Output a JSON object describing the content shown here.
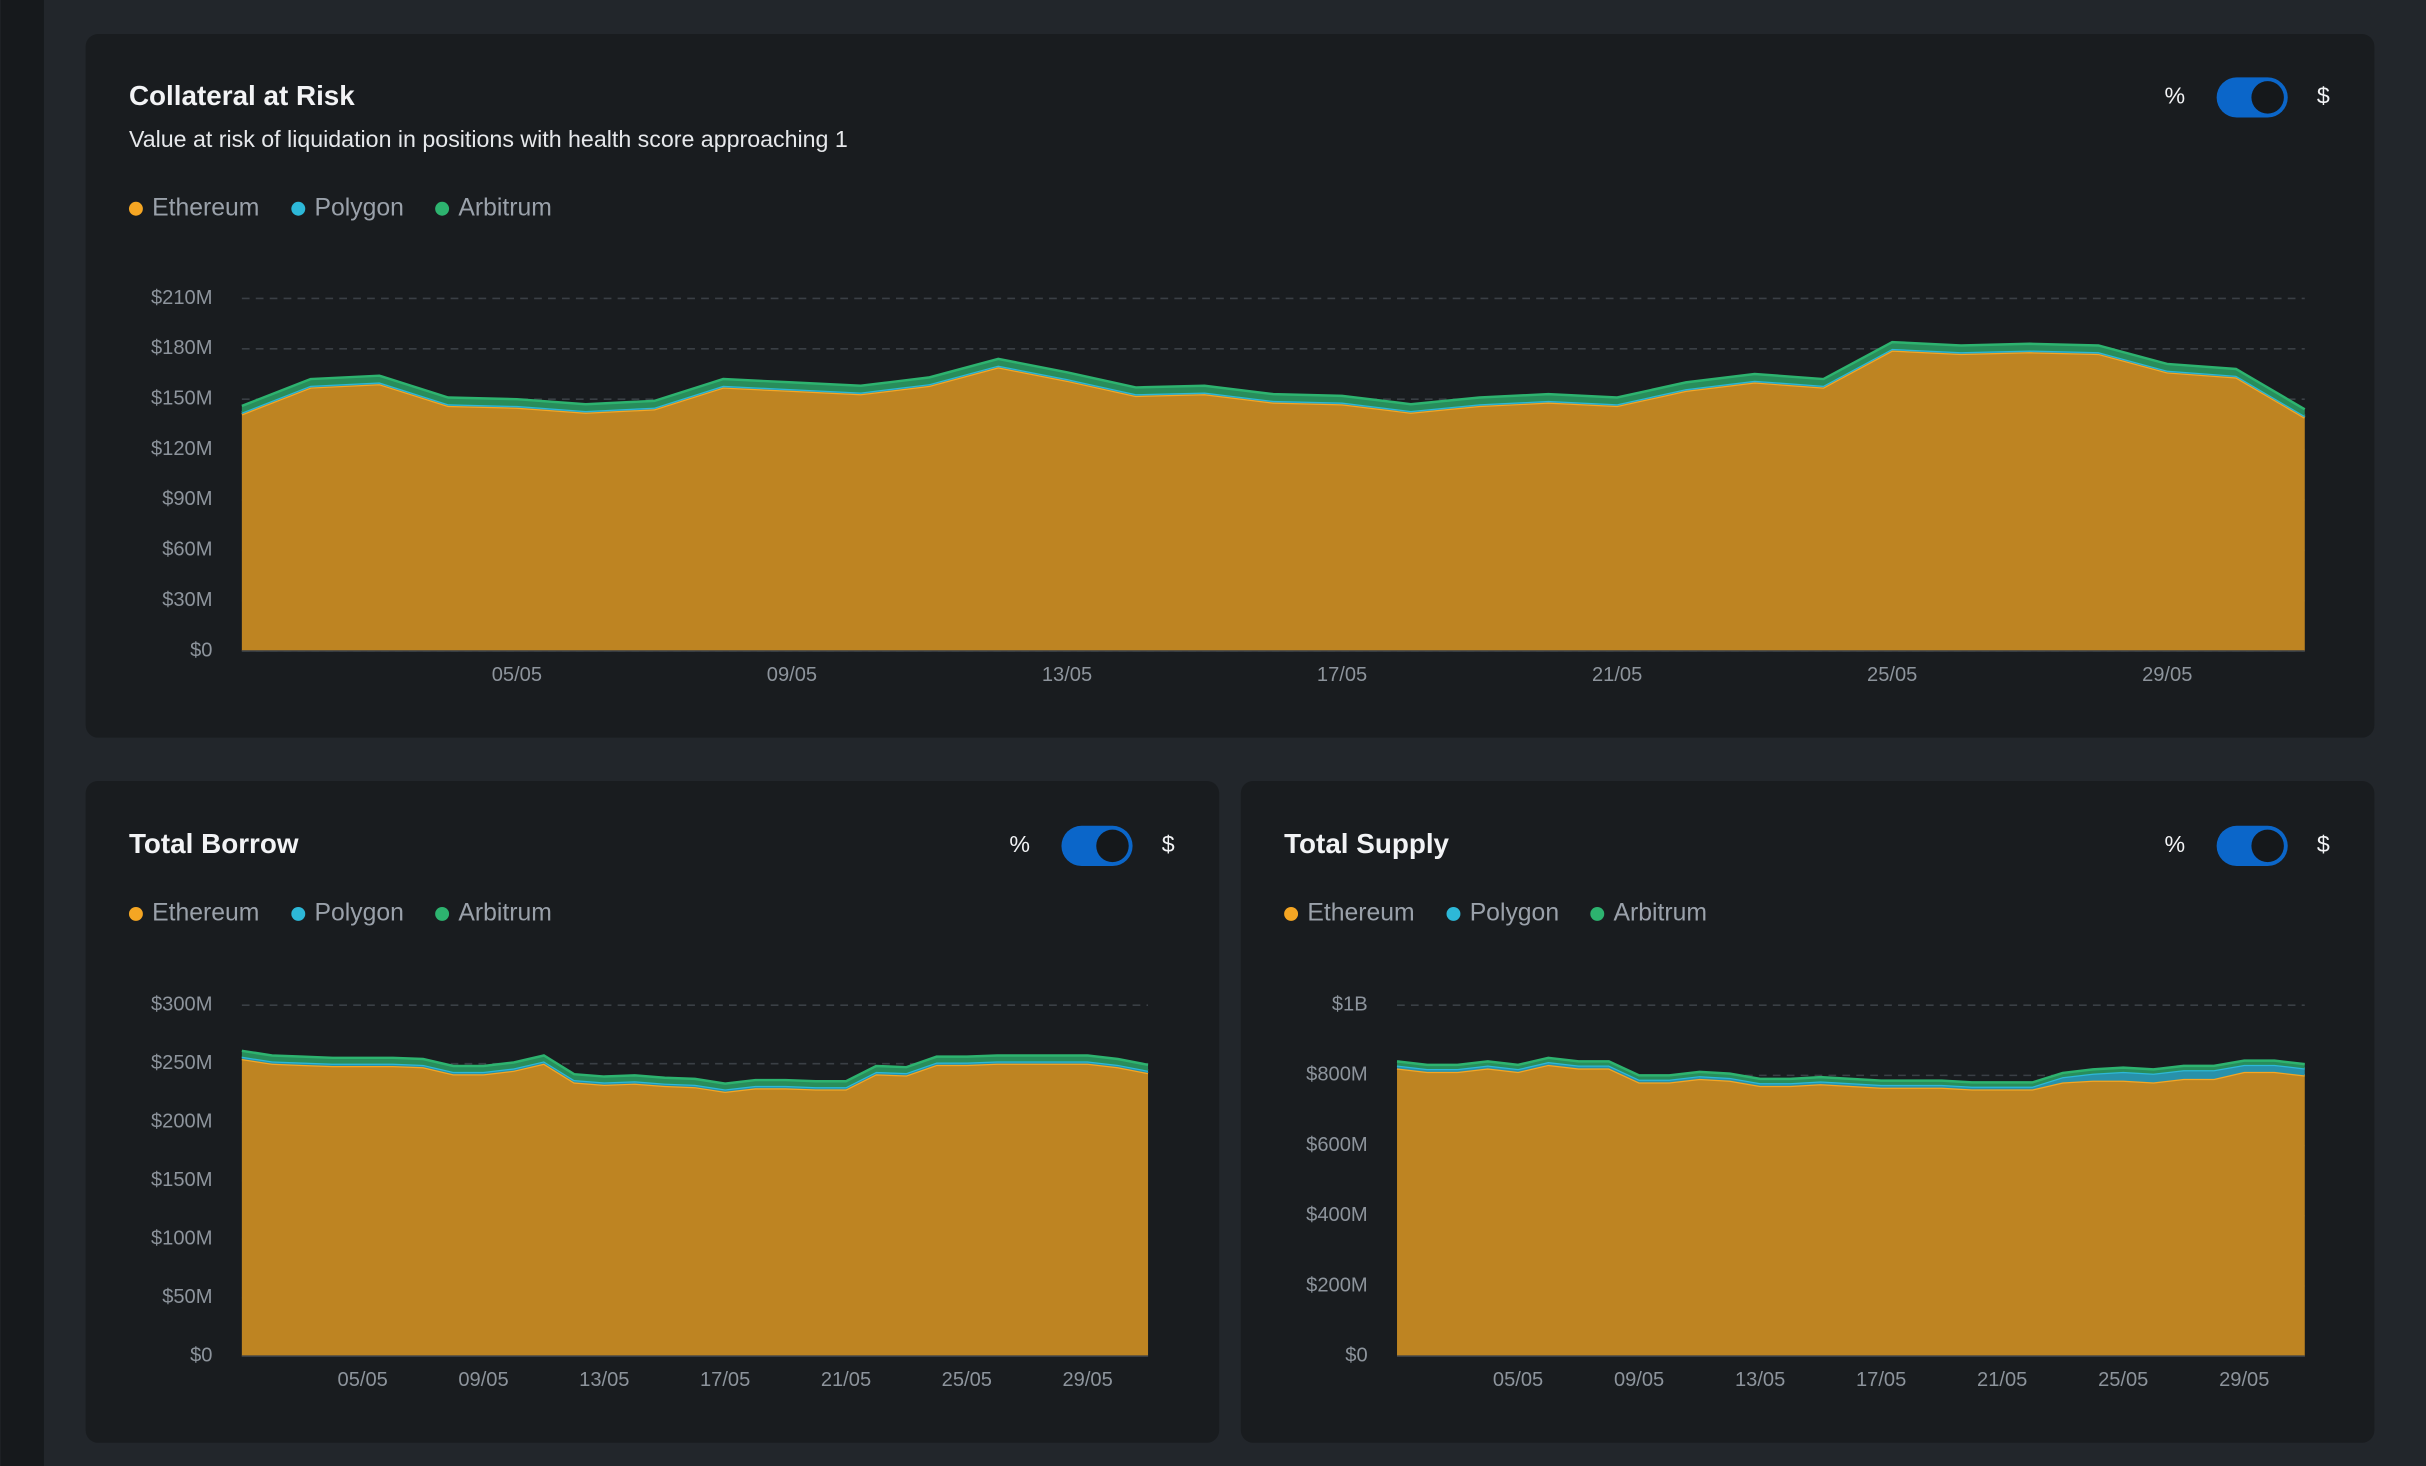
{
  "chart_data": [
    {
      "type": "stacked-area",
      "title": "Collateral at Risk",
      "subtitle": "Value at risk of liquidation in positions with health score approaching 1",
      "toggle": {
        "left": "%",
        "right": "$"
      },
      "categories": [
        null,
        null,
        null,
        null,
        "05/05",
        null,
        null,
        null,
        "09/05",
        null,
        null,
        null,
        "13/05",
        null,
        null,
        null,
        "17/05",
        null,
        null,
        null,
        "21/05",
        null,
        null,
        null,
        "25/05",
        null,
        null,
        null,
        "29/05",
        null,
        null
      ],
      "series": [
        {
          "name": "Ethereum",
          "color": "#f5a623",
          "values": [
            141,
            157,
            159,
            146,
            145,
            142,
            144,
            157,
            155,
            153,
            158,
            169,
            161,
            152,
            153,
            148,
            147,
            142,
            146,
            148,
            146,
            155,
            160,
            157,
            179,
            177,
            178,
            177,
            166,
            163,
            139
          ]
        },
        {
          "name": "Polygon",
          "color": "#2db8d8",
          "values": [
            1,
            1,
            1,
            1,
            1,
            1,
            1,
            1,
            1,
            1,
            1,
            1,
            1,
            1,
            1,
            1,
            1,
            1,
            1,
            1,
            1,
            1,
            1,
            1,
            1,
            1,
            1,
            1,
            1,
            1,
            1
          ]
        },
        {
          "name": "Arbitrum",
          "color": "#2db36f",
          "values": [
            4,
            4,
            4,
            4,
            4,
            4,
            4,
            4,
            4,
            4,
            4,
            4,
            4,
            4,
            4,
            4,
            4,
            4,
            4,
            4,
            4,
            4,
            4,
            4,
            4,
            4,
            4,
            4,
            4,
            4,
            4
          ]
        }
      ],
      "ylim": [
        0,
        210
      ],
      "yticks": [
        {
          "value": 0,
          "label": "$0"
        },
        {
          "value": 30,
          "label": "$30M"
        },
        {
          "value": 60,
          "label": "$60M"
        },
        {
          "value": 90,
          "label": "$90M"
        },
        {
          "value": 120,
          "label": "$120M"
        },
        {
          "value": 150,
          "label": "$150M"
        },
        {
          "value": 180,
          "label": "$180M"
        },
        {
          "value": 210,
          "label": "$210M"
        }
      ],
      "grid": true
    },
    {
      "type": "stacked-area",
      "title": "Total Borrow",
      "toggle": {
        "left": "%",
        "right": "$"
      },
      "categories": [
        null,
        null,
        null,
        null,
        "05/05",
        null,
        null,
        null,
        "09/05",
        null,
        null,
        null,
        "13/05",
        null,
        null,
        null,
        "17/05",
        null,
        null,
        null,
        "21/05",
        null,
        null,
        null,
        "25/05",
        null,
        null,
        null,
        "29/05",
        null,
        null
      ],
      "series": [
        {
          "name": "Ethereum",
          "color": "#f5a623",
          "values": [
            254,
            250,
            249,
            248,
            248,
            248,
            247,
            241,
            241,
            244,
            250,
            234,
            232,
            233,
            231,
            230,
            226,
            229,
            229,
            228,
            228,
            241,
            240,
            249,
            249,
            250,
            250,
            250,
            250,
            247,
            242
          ]
        },
        {
          "name": "Polygon",
          "color": "#2db8d8",
          "values": [
            2,
            2,
            2,
            2,
            2,
            2,
            2,
            2,
            2,
            2,
            2,
            2,
            2,
            2,
            2,
            2,
            2,
            2,
            2,
            2,
            2,
            2,
            2,
            2,
            2,
            2,
            2,
            2,
            2,
            2,
            2
          ]
        },
        {
          "name": "Arbitrum",
          "color": "#2db36f",
          "values": [
            5,
            5,
            5,
            5,
            5,
            5,
            5,
            5,
            5,
            5,
            5,
            5,
            5,
            5,
            5,
            5,
            5,
            5,
            5,
            5,
            5,
            5,
            5,
            5,
            5,
            5,
            5,
            5,
            5,
            5,
            5
          ]
        }
      ],
      "ylim": [
        0,
        300
      ],
      "yticks": [
        {
          "value": 0,
          "label": "$0"
        },
        {
          "value": 50,
          "label": "$50M"
        },
        {
          "value": 100,
          "label": "$100M"
        },
        {
          "value": 150,
          "label": "$150M"
        },
        {
          "value": 200,
          "label": "$200M"
        },
        {
          "value": 250,
          "label": "$250M"
        },
        {
          "value": 300,
          "label": "$300M"
        }
      ],
      "grid": true
    },
    {
      "type": "stacked-area",
      "title": "Total Supply",
      "toggle": {
        "left": "%",
        "right": "$"
      },
      "categories": [
        null,
        null,
        null,
        null,
        "05/05",
        null,
        null,
        null,
        "09/05",
        null,
        null,
        null,
        "13/05",
        null,
        null,
        null,
        "17/05",
        null,
        null,
        null,
        "21/05",
        null,
        null,
        null,
        "25/05",
        null,
        null,
        null,
        "29/05",
        null,
        null
      ],
      "series": [
        {
          "name": "Ethereum",
          "color": "#f5a623",
          "values": [
            820,
            810,
            810,
            820,
            810,
            830,
            820,
            820,
            780,
            780,
            790,
            785,
            770,
            770,
            775,
            770,
            765,
            765,
            765,
            760,
            760,
            760,
            780,
            785,
            785,
            780,
            790,
            790,
            810,
            810,
            800
          ]
        },
        {
          "name": "Polygon",
          "color": "#2db8d8",
          "values": [
            8,
            8,
            8,
            8,
            8,
            8,
            8,
            8,
            8,
            8,
            8,
            8,
            8,
            8,
            8,
            8,
            8,
            8,
            8,
            8,
            8,
            8,
            15,
            20,
            25,
            25,
            25,
            25,
            20,
            20,
            20
          ]
        },
        {
          "name": "Arbitrum",
          "color": "#2db36f",
          "values": [
            12,
            12,
            12,
            12,
            12,
            12,
            12,
            12,
            12,
            12,
            12,
            12,
            12,
            12,
            12,
            12,
            12,
            12,
            12,
            12,
            12,
            12,
            12,
            12,
            12,
            12,
            12,
            12,
            12,
            12,
            12
          ]
        }
      ],
      "ylim": [
        0,
        1000
      ],
      "yticks": [
        {
          "value": 0,
          "label": "$0"
        },
        {
          "value": 200,
          "label": "$200M"
        },
        {
          "value": 400,
          "label": "$400M"
        },
        {
          "value": 600,
          "label": "$600M"
        },
        {
          "value": 800,
          "label": "$800M"
        },
        {
          "value": 1000,
          "label": "$1B"
        }
      ],
      "grid": true
    }
  ]
}
